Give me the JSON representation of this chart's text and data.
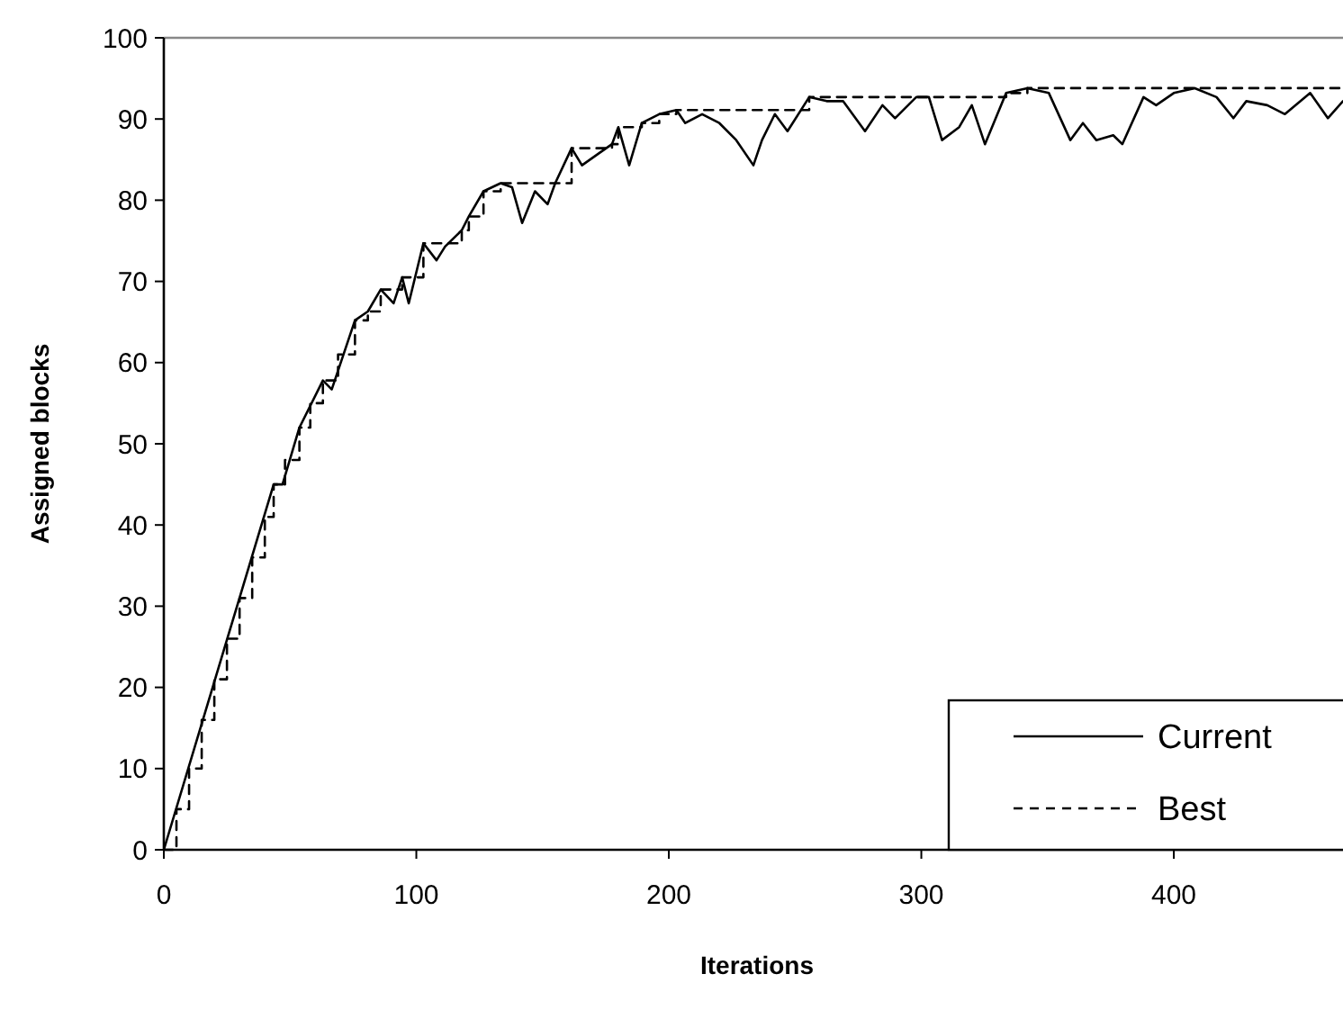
{
  "chart_data": {
    "type": "line",
    "xlabel": "Iterations",
    "ylabel": "Assigned blocks",
    "xlim": [
      0,
      467
    ],
    "xticks": [
      0,
      100,
      200,
      300,
      400
    ],
    "ylim": [
      0,
      100
    ],
    "yticks": [
      0,
      10,
      20,
      30,
      40,
      50,
      60,
      70,
      80,
      90,
      100
    ],
    "grid": false,
    "legend": "bottom right",
    "marker": "none",
    "series": [
      {
        "name": "Current",
        "color": "#000000",
        "line_style": "solid",
        "x": [
          0,
          43.5,
          47,
          53.7,
          63,
          66.5,
          75.7,
          80.8,
          85.9,
          91,
          94.4,
          97,
          102.8,
          108,
          111.4,
          118,
          120.8,
          126.6,
          133.4,
          137.9,
          141.9,
          147,
          152,
          155,
          161.5,
          165.6,
          172.4,
          177.5,
          180,
          184.3,
          189.3,
          196.2,
          203,
          206.5,
          213.2,
          220,
          226.7,
          233.5,
          236.9,
          242,
          247,
          255.6,
          262.5,
          269,
          277.7,
          284.6,
          289.6,
          298,
          303,
          308.2,
          315,
          320,
          325.2,
          333.6,
          342,
          350.5,
          359,
          364,
          369.3,
          376,
          379.6,
          388,
          393,
          400,
          408.3,
          416.9,
          423.6,
          428.7,
          437,
          444,
          454,
          461,
          467
        ],
        "values": [
          0,
          45,
          45,
          52,
          57.8,
          56.7,
          65.2,
          66.3,
          69,
          67.3,
          70.5,
          67.3,
          74.7,
          72.6,
          74.3,
          76.3,
          78,
          81.1,
          82.1,
          81.6,
          77.2,
          81.1,
          79.5,
          82.1,
          86.4,
          84.3,
          85.8,
          86.9,
          89,
          84.3,
          89.5,
          90.6,
          91.1,
          89.5,
          90.6,
          89.5,
          87.4,
          84.3,
          87.4,
          90.6,
          88.5,
          92.7,
          92.2,
          92.2,
          88.5,
          91.7,
          90.1,
          92.7,
          92.7,
          87.4,
          89,
          91.7,
          86.9,
          93.2,
          93.8,
          93.2,
          87.4,
          89.5,
          87.4,
          88,
          86.9,
          92.7,
          91.7,
          93.2,
          93.8,
          92.7,
          90.1,
          92.2,
          91.7,
          90.6,
          93.2,
          90.1,
          92.2
        ]
      },
      {
        "name": "Best",
        "type": "step",
        "color": "#000000",
        "line_style": "dashed",
        "x": [
          0,
          5,
          10,
          15,
          20,
          25,
          30,
          35,
          40,
          43.5,
          48,
          53.7,
          58,
          63,
          69,
          75.7,
          80.8,
          85.9,
          94.4,
          102.8,
          118,
          120.8,
          126.6,
          133.4,
          161.5,
          177.5,
          180,
          189.3,
          196.2,
          203,
          255.6,
          333.6,
          342,
          467
        ],
        "values": [
          0,
          5,
          10,
          16,
          21,
          26,
          31,
          36,
          41,
          45,
          48,
          52,
          55,
          57.8,
          61,
          65.2,
          66.3,
          69,
          70.5,
          74.7,
          76.3,
          78,
          81.1,
          82.1,
          86.4,
          86.9,
          89,
          89.5,
          90.6,
          91.1,
          92.7,
          93.2,
          93.8,
          93.8
        ]
      }
    ]
  }
}
